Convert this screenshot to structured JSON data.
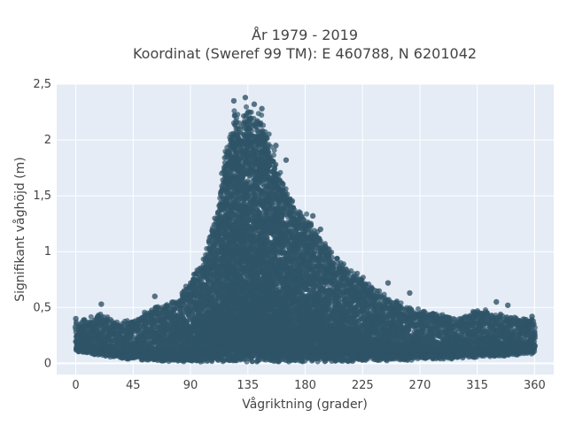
{
  "chart_data": {
    "type": "scatter",
    "title_lines": [
      "År 1979 - 2019",
      "Koordinat (Sweref 99 TM): E 460788, N 6201042"
    ],
    "xlabel": "Vågriktning (grader)",
    "ylabel": "Signifikant våghöjd (m)",
    "xlim": [
      -15,
      375
    ],
    "ylim": [
      -0.1,
      2.5
    ],
    "xticks": [
      0,
      45,
      90,
      135,
      180,
      225,
      270,
      315,
      360
    ],
    "xtick_labels": [
      "0",
      "45",
      "90",
      "135",
      "180",
      "225",
      "270",
      "315",
      "360"
    ],
    "yticks": [
      0,
      0.5,
      1,
      1.5,
      2,
      2.5
    ],
    "ytick_labels": [
      "0",
      "0,5",
      "1",
      "1,5",
      "2",
      "2,5"
    ],
    "grid": true,
    "marker_color": "#2f5468",
    "background_color": "#e5ecf6",
    "upper_envelope": {
      "x": [
        0,
        10,
        20,
        30,
        45,
        60,
        70,
        80,
        90,
        100,
        110,
        115,
        120,
        125,
        130,
        135,
        140,
        145,
        150,
        155,
        160,
        170,
        180,
        190,
        200,
        210,
        225,
        240,
        255,
        270,
        285,
        300,
        315,
        330,
        345,
        360
      ],
      "y": [
        0.38,
        0.42,
        0.45,
        0.38,
        0.4,
        0.5,
        0.55,
        0.6,
        0.75,
        0.95,
        1.35,
        1.75,
        2.1,
        2.3,
        2.2,
        2.38,
        2.2,
        2.3,
        2.1,
        1.95,
        1.75,
        1.5,
        1.35,
        1.2,
        1.05,
        0.9,
        0.78,
        0.65,
        0.55,
        0.48,
        0.45,
        0.42,
        0.5,
        0.45,
        0.42,
        0.4
      ]
    },
    "lower_envelope": {
      "x": [
        0,
        45,
        60,
        90,
        120,
        180,
        240,
        300,
        360
      ],
      "y": [
        0.1,
        0.03,
        0.02,
        0.01,
        0.01,
        0.01,
        0.02,
        0.04,
        0.08
      ]
    },
    "outlier_points": [
      {
        "x": 133,
        "y": 2.38
      },
      {
        "x": 124,
        "y": 2.35
      },
      {
        "x": 140,
        "y": 2.32
      },
      {
        "x": 146,
        "y": 2.28
      },
      {
        "x": 157,
        "y": 1.95
      },
      {
        "x": 165,
        "y": 1.82
      },
      {
        "x": 186,
        "y": 1.32
      },
      {
        "x": 192,
        "y": 1.2
      },
      {
        "x": 245,
        "y": 0.72
      },
      {
        "x": 262,
        "y": 0.63
      },
      {
        "x": 330,
        "y": 0.55
      },
      {
        "x": 339,
        "y": 0.52
      },
      {
        "x": 62,
        "y": 0.6
      },
      {
        "x": 20,
        "y": 0.53
      },
      {
        "x": 0,
        "y": 0.4
      },
      {
        "x": 358,
        "y": 0.42
      }
    ]
  }
}
